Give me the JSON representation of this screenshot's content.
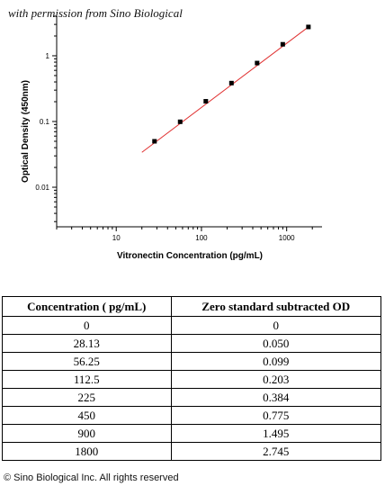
{
  "credit": "with permission from Sino Biological",
  "chart_data": {
    "type": "scatter",
    "xlabel": "Vitronectin Concentration (pg/mL)",
    "ylabel": "Optical Density (450nm)",
    "xscale": "log",
    "yscale": "log",
    "xlim": [
      2,
      2600
    ],
    "ylim": [
      0.0025,
      4
    ],
    "x_ticks": [
      10,
      100,
      1000
    ],
    "x_tick_labels": [
      "10",
      "100",
      "1000"
    ],
    "y_ticks": [
      0.01,
      0.1,
      1
    ],
    "y_tick_labels": [
      "0.01",
      "0.1",
      "1"
    ],
    "points": [
      {
        "x": 28.13,
        "y": 0.05
      },
      {
        "x": 56.25,
        "y": 0.099
      },
      {
        "x": 112.5,
        "y": 0.203
      },
      {
        "x": 225,
        "y": 0.384
      },
      {
        "x": 450,
        "y": 0.775
      },
      {
        "x": 900,
        "y": 1.495
      },
      {
        "x": 1800,
        "y": 2.745
      }
    ],
    "fit_line": {
      "color": "#e03030",
      "from": [
        20,
        0.034
      ],
      "to": [
        1800,
        2.745
      ]
    },
    "marker_color": "#000000",
    "grid": false
  },
  "table": {
    "headers": [
      "Concentration ( pg/mL)",
      "Zero standard subtracted OD"
    ],
    "rows": [
      [
        "0",
        "0"
      ],
      [
        "28.13",
        "0.050"
      ],
      [
        "56.25",
        "0.099"
      ],
      [
        "112.5",
        "0.203"
      ],
      [
        "225",
        "0.384"
      ],
      [
        "450",
        "0.775"
      ],
      [
        "900",
        "1.495"
      ],
      [
        "1800",
        "2.745"
      ]
    ]
  },
  "copyright": "© Sino Biological Inc. All rights reserved"
}
